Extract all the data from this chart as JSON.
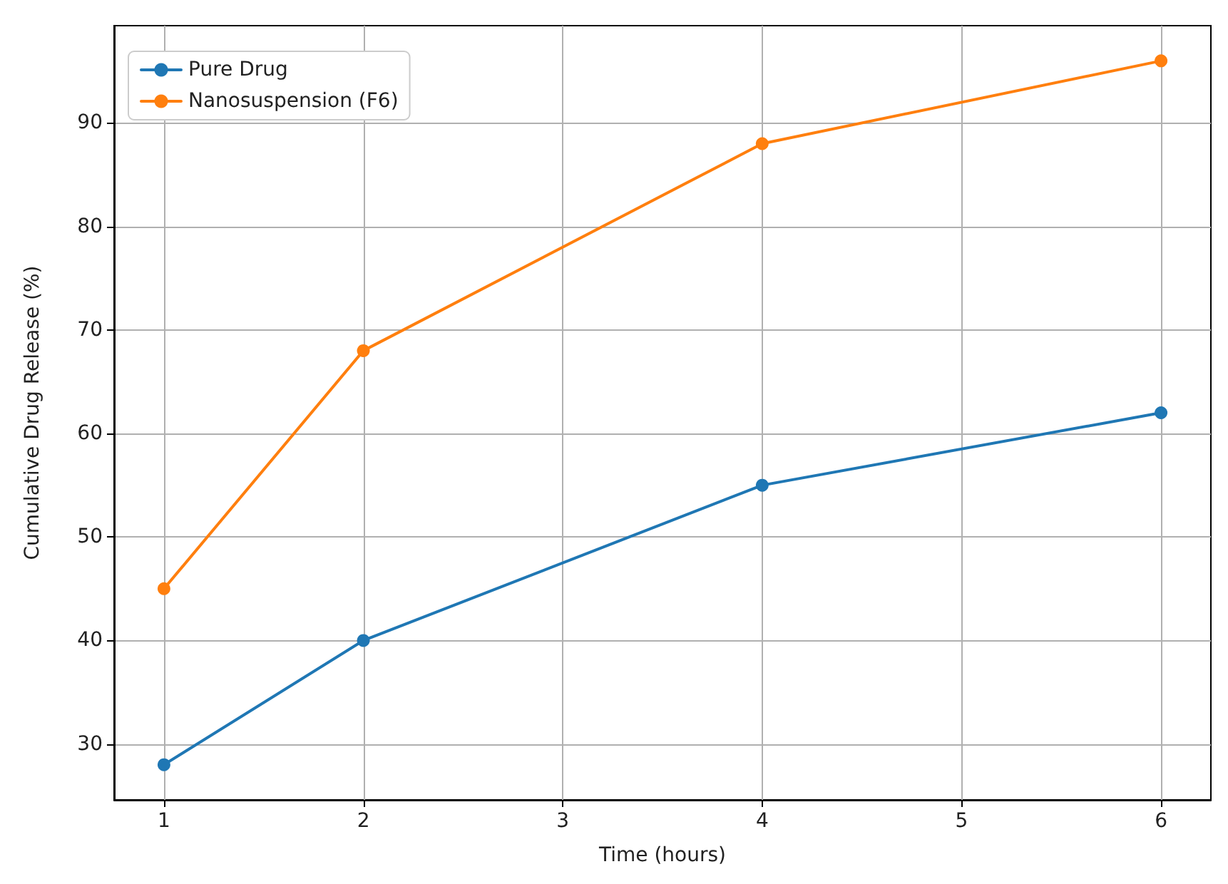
{
  "chart_data": {
    "type": "line",
    "xlabel": "Time (hours)",
    "ylabel": "Cumulative Drug Release (%)",
    "x": [
      1,
      2,
      4,
      6
    ],
    "series": [
      {
        "name": "Pure Drug",
        "color": "#1f77b4",
        "values": [
          28,
          40,
          55,
          62
        ]
      },
      {
        "name": "Nanosuspension (F6)",
        "color": "#ff7f0e",
        "values": [
          45,
          68,
          88,
          96
        ]
      }
    ],
    "xlim": [
      0.75,
      6.25
    ],
    "xticks": [
      1,
      2,
      3,
      4,
      5,
      6
    ],
    "ylim": [
      24.6,
      99.4
    ],
    "yticks": [
      30,
      40,
      50,
      60,
      70,
      80,
      90
    ],
    "grid": true,
    "legend": "top left",
    "marker": "circle",
    "line_style": "solid"
  }
}
